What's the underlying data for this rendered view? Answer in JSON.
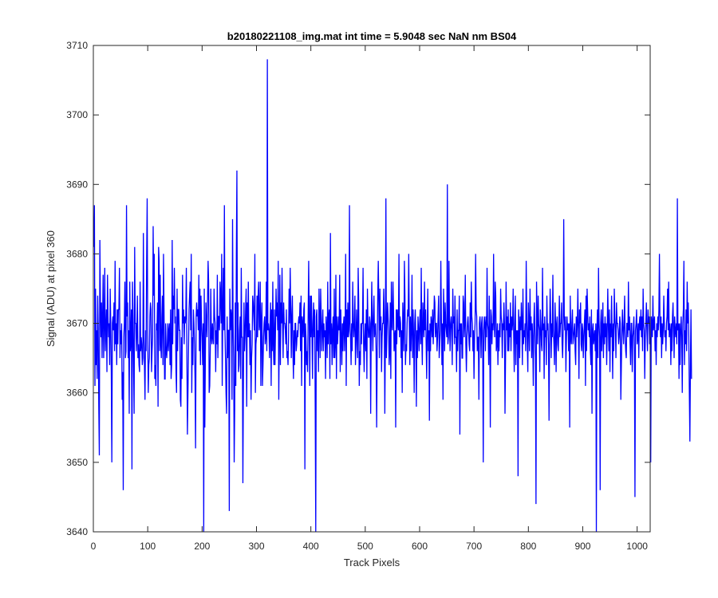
{
  "chart_data": {
    "type": "line",
    "title": "b20180221108_img.mat int time = 5.9048 sec  NaN nm BS04",
    "xlabel": "Track Pixels",
    "ylabel": "Signal (ADU) at pixel 360",
    "xlim": [
      0,
      1024
    ],
    "ylim": [
      3640,
      3710
    ],
    "xticks": [
      0,
      100,
      200,
      300,
      400,
      500,
      600,
      700,
      800,
      900,
      1000
    ],
    "xtick_labels": [
      "0",
      "100",
      "200",
      "300",
      "400",
      "500",
      "600",
      "700",
      "800",
      "900",
      "1000"
    ],
    "yticks": [
      3640,
      3650,
      3660,
      3670,
      3680,
      3690,
      3700,
      3710
    ],
    "ytick_labels": [
      "3640",
      "3650",
      "3660",
      "3670",
      "3680",
      "3690",
      "3700",
      "3710"
    ],
    "grid": false,
    "legend": "none",
    "series_color": "#0000ff",
    "series": [
      {
        "x_start": 1,
        "x_step": 1,
        "values": [
          3681,
          3687,
          3661,
          3675,
          3664,
          3669,
          3662,
          3674,
          3669,
          3658,
          3651,
          3682,
          3673,
          3668,
          3673,
          3665,
          3671,
          3677,
          3665,
          3670,
          3678,
          3666,
          3669,
          3672,
          3663,
          3677,
          3671,
          3668,
          3670,
          3664,
          3675,
          3670,
          3663,
          3650,
          3670,
          3671,
          3669,
          3673,
          3666,
          3679,
          3667,
          3670,
          3664,
          3672,
          3667,
          3672,
          3672,
          3678,
          3665,
          3669,
          3667,
          3670,
          3659,
          3663,
          3646,
          3668,
          3670,
          3676,
          3665,
          3666,
          3687,
          3671,
          3673,
          3665,
          3669,
          3657,
          3676,
          3666,
          3668,
          3672,
          3649,
          3676,
          3671,
          3664,
          3657,
          3681,
          3670,
          3670,
          3666,
          3669,
          3674,
          3665,
          3667,
          3664,
          3663,
          3676,
          3666,
          3668,
          3667,
          3664,
          3665,
          3683,
          3668,
          3664,
          3659,
          3669,
          3666,
          3679,
          3688,
          3669,
          3660,
          3664,
          3665,
          3671,
          3673,
          3672,
          3663,
          3666,
          3668,
          3684,
          3674,
          3680,
          3662,
          3664,
          3661,
          3670,
          3669,
          3673,
          3658,
          3681,
          3679,
          3666,
          3677,
          3667,
          3665,
          3671,
          3674,
          3664,
          3680,
          3672,
          3662,
          3662,
          3670,
          3666,
          3665,
          3667,
          3670,
          3666,
          3669,
          3670,
          3664,
          3672,
          3662,
          3664,
          3682,
          3667,
          3674,
          3672,
          3678,
          3670,
          3671,
          3663,
          3660,
          3675,
          3666,
          3672,
          3672,
          3669,
          3669,
          3659,
          3658,
          3668,
          3662,
          3677,
          3670,
          3672,
          3667,
          3671,
          3670,
          3671,
          3678,
          3666,
          3654,
          3660,
          3666,
          3672,
          3674,
          3676,
          3669,
          3680,
          3660,
          3668,
          3664,
          3672,
          3670,
          3667,
          3662,
          3652,
          3671,
          3673,
          3671,
          3672,
          3669,
          3677,
          3666,
          3675,
          3664,
          3674,
          3670,
          3668,
          3664,
          3670,
          3640,
          3675,
          3655,
          3665,
          3673,
          3670,
          3668,
          3673,
          3679,
          3676,
          3660,
          3661,
          3666,
          3675,
          3668,
          3667,
          3670,
          3668,
          3667,
          3675,
          3671,
          3670,
          3663,
          3669,
          3667,
          3677,
          3665,
          3671,
          3671,
          3669,
          3676,
          3674,
          3670,
          3680,
          3661,
          3672,
          3678,
          3669,
          3687,
          3669,
          3665,
          3660,
          3657,
          3671,
          3665,
          3669,
          3669,
          3643,
          3675,
          3669,
          3672,
          3671,
          3659,
          3685,
          3670,
          3665,
          3650,
          3658,
          3673,
          3661,
          3680,
          3692,
          3666,
          3673,
          3663,
          3664,
          3669,
          3671,
          3662,
          3678,
          3668,
          3668,
          3647,
          3662,
          3673,
          3666,
          3668,
          3672,
          3675,
          3658,
          3673,
          3668,
          3676,
          3668,
          3670,
          3664,
          3669,
          3659,
          3665,
          3667,
          3674,
          3673,
          3671,
          3669,
          3680,
          3660,
          3667,
          3668,
          3674,
          3668,
          3674,
          3676,
          3669,
          3670,
          3676,
          3661,
          3670,
          3673,
          3661,
          3664,
          3668,
          3670,
          3671,
          3667,
          3668,
          3676,
          3666,
          3708,
          3669,
          3670,
          3669,
          3665,
          3670,
          3673,
          3661,
          3672,
          3666,
          3676,
          3667,
          3664,
          3672,
          3664,
          3669,
          3675,
          3671,
          3673,
          3669,
          3679,
          3659,
          3669,
          3677,
          3664,
          3673,
          3670,
          3678,
          3670,
          3665,
          3673,
          3670,
          3670,
          3669,
          3667,
          3672,
          3665,
          3666,
          3664,
          3668,
          3675,
          3670,
          3678,
          3672,
          3665,
          3671,
          3674,
          3666,
          3662,
          3669,
          3664,
          3670,
          3670,
          3666,
          3667,
          3669,
          3668,
          3670,
          3671,
          3670,
          3673,
          3666,
          3674,
          3661,
          3671,
          3670,
          3668,
          3672,
          3673,
          3649,
          3670,
          3668,
          3664,
          3666,
          3663,
          3671,
          3679,
          3670,
          3661,
          3674,
          3668,
          3674,
          3669,
          3662,
          3670,
          3673,
          3668,
          3672,
          3658,
          3640,
          3671,
          3672,
          3666,
          3669,
          3663,
          3675,
          3670,
          3665,
          3675,
          3671,
          3666,
          3669,
          3672,
          3666,
          3670,
          3668,
          3669,
          3662,
          3671,
          3669,
          3665,
          3676,
          3667,
          3671,
          3672,
          3662,
          3683,
          3667,
          3670,
          3664,
          3669,
          3671,
          3665,
          3675,
          3665,
          3667,
          3677,
          3662,
          3671,
          3667,
          3669,
          3671,
          3669,
          3677,
          3663,
          3672,
          3668,
          3664,
          3670,
          3666,
          3670,
          3671,
          3666,
          3669,
          3680,
          3661,
          3672,
          3668,
          3673,
          3668,
          3669,
          3687,
          3670,
          3668,
          3664,
          3670,
          3666,
          3676,
          3670,
          3668,
          3670,
          3674,
          3664,
          3667,
          3672,
          3668,
          3665,
          3678,
          3673,
          3661,
          3666,
          3664,
          3670,
          3667,
          3670,
          3670,
          3678,
          3667,
          3663,
          3668,
          3670,
          3666,
          3672,
          3662,
          3675,
          3670,
          3668,
          3668,
          3671,
          3670,
          3657,
          3669,
          3676,
          3670,
          3666,
          3671,
          3674,
          3668,
          3669,
          3670,
          3666,
          3655,
          3666,
          3674,
          3679,
          3673,
          3665,
          3675,
          3669,
          3671,
          3663,
          3668,
          3670,
          3670,
          3675,
          3671,
          3657,
          3667,
          3688,
          3665,
          3669,
          3673,
          3671,
          3669,
          3664,
          3666,
          3673,
          3662,
          3676,
          3670,
          3669,
          3676,
          3672,
          3666,
          3668,
          3669,
          3655,
          3672,
          3667,
          3672,
          3670,
          3669,
          3680,
          3668,
          3671,
          3670,
          3665,
          3669,
          3660,
          3673,
          3670,
          3666,
          3679,
          3674,
          3664,
          3667,
          3666,
          3670,
          3672,
          3671,
          3680,
          3670,
          3664,
          3671,
          3666,
          3669,
          3677,
          3665,
          3672,
          3668,
          3660,
          3670,
          3672,
          3668,
          3658,
          3669,
          3665,
          3671,
          3669,
          3666,
          3670,
          3672,
          3667,
          3678,
          3668,
          3664,
          3673,
          3670,
          3668,
          3676,
          3669,
          3672,
          3667,
          3662,
          3669,
          3675,
          3666,
          3669,
          3656,
          3670,
          3666,
          3671,
          3670,
          3668,
          3672,
          3667,
          3670,
          3674,
          3673,
          3668,
          3670,
          3670,
          3666,
          3668,
          3671,
          3674,
          3665,
          3667,
          3669,
          3679,
          3671,
          3664,
          3670,
          3659,
          3675,
          3671,
          3666,
          3673,
          3670,
          3669,
          3668,
          3690,
          3667,
          3668,
          3679,
          3670,
          3666,
          3670,
          3671,
          3669,
          3664,
          3675,
          3670,
          3671,
          3667,
          3674,
          3668,
          3668,
          3663,
          3672,
          3666,
          3669,
          3669,
          3674,
          3654,
          3670,
          3667,
          3670,
          3665,
          3665,
          3674,
          3673,
          3668,
          3670,
          3677,
          3667,
          3663,
          3668,
          3670,
          3671,
          3669,
          3667,
          3666,
          3673,
          3668,
          3676,
          3671,
          3670,
          3666,
          3669,
          3662,
          3668,
          3670,
          3680,
          3672,
          3671,
          3666,
          3668,
          3668,
          3659,
          3670,
          3671,
          3669,
          3665,
          3670,
          3671,
          3667,
          3650,
          3669,
          3671,
          3670,
          3666,
          3671,
          3668,
          3678,
          3670,
          3669,
          3664,
          3674,
          3668,
          3655,
          3672,
          3671,
          3667,
          3670,
          3669,
          3680,
          3670,
          3668,
          3676,
          3674,
          3666,
          3667,
          3670,
          3664,
          3669,
          3666,
          3670,
          3668,
          3675,
          3671,
          3670,
          3665,
          3670,
          3669,
          3673,
          3670,
          3657,
          3665,
          3676,
          3669,
          3671,
          3666,
          3672,
          3666,
          3670,
          3668,
          3673,
          3666,
          3671,
          3669,
          3670,
          3675,
          3668,
          3663,
          3670,
          3674,
          3664,
          3669,
          3667,
          3669,
          3648,
          3672,
          3670,
          3665,
          3671,
          3669,
          3673,
          3670,
          3664,
          3675,
          3667,
          3669,
          3668,
          3670,
          3666,
          3679,
          3671,
          3667,
          3663,
          3673,
          3670,
          3666,
          3675,
          3669,
          3671,
          3665,
          3670,
          3668,
          3661,
          3670,
          3673,
          3669,
          3665,
          3644,
          3676,
          3671,
          3667,
          3674,
          3670,
          3669,
          3663,
          3672,
          3670,
          3667,
          3666,
          3678,
          3669,
          3670,
          3662,
          3671,
          3668,
          3669,
          3664,
          3674,
          3669,
          3670,
          3667,
          3656,
          3668,
          3675,
          3671,
          3665,
          3670,
          3668,
          3677,
          3669,
          3667,
          3664,
          3673,
          3670,
          3663,
          3670,
          3671,
          3667,
          3666,
          3669,
          3674,
          3668,
          3670,
          3670,
          3673,
          3667,
          3665,
          3669,
          3685,
          3671,
          3669,
          3671,
          3663,
          3668,
          3671,
          3669,
          3670,
          3666,
          3670,
          3655,
          3674,
          3668,
          3667,
          3670,
          3672,
          3667,
          3668,
          3669,
          3670,
          3666,
          3664,
          3671,
          3668,
          3670,
          3675,
          3669,
          3662,
          3672,
          3670,
          3673,
          3667,
          3666,
          3670,
          3669,
          3665,
          3668,
          3670,
          3672,
          3661,
          3674,
          3666,
          3675,
          3672,
          3669,
          3670,
          3668,
          3671,
          3666,
          3664,
          3672,
          3657,
          3669,
          3670,
          3667,
          3668,
          3669,
          3666,
          3670,
          3640,
          3669,
          3672,
          3665,
          3678,
          3670,
          3668,
          3646,
          3670,
          3672,
          3666,
          3669,
          3673,
          3665,
          3670,
          3667,
          3671,
          3668,
          3670,
          3664,
          3669,
          3675,
          3670,
          3666,
          3672,
          3663,
          3670,
          3668,
          3674,
          3669,
          3662,
          3670,
          3666,
          3675,
          3671,
          3669,
          3665,
          3673,
          3670,
          3670,
          3669,
          3667,
          3668,
          3671,
          3670,
          3659,
          3664,
          3669,
          3672,
          3669,
          3667,
          3670,
          3674,
          3668,
          3666,
          3665,
          3670,
          3670,
          3668,
          3676,
          3669,
          3671,
          3667,
          3664,
          3670,
          3670,
          3663,
          3668,
          3669,
          3671,
          3666,
          3645,
          3669,
          3670,
          3672,
          3667,
          3668,
          3670,
          3665,
          3670,
          3671,
          3669,
          3672,
          3668,
          3671,
          3666,
          3675,
          3670,
          3669,
          3662,
          3668,
          3670,
          3673,
          3669,
          3666,
          3672,
          3670,
          3671,
          3667,
          3668,
          3650,
          3671,
          3670,
          3668,
          3674,
          3669,
          3670,
          3671,
          3666,
          3669,
          3664,
          3670,
          3668,
          3671,
          3669,
          3672,
          3680,
          3670,
          3668,
          3671,
          3665,
          3670,
          3667,
          3669,
          3674,
          3670,
          3668,
          3669,
          3666,
          3670,
          3671,
          3675,
          3669,
          3676,
          3668,
          3670,
          3669,
          3664,
          3670,
          3666,
          3671,
          3673,
          3669,
          3665,
          3671,
          3669,
          3668,
          3670,
          3667,
          3688,
          3669,
          3670,
          3662,
          3670,
          3664,
          3669,
          3671,
          3668,
          3660,
          3670,
          3672,
          3679,
          3664,
          3669,
          3667,
          3672,
          3666,
          3676,
          3670,
          3673,
          3668,
          3660,
          3653,
          3664,
          3672,
          3662
        ]
      }
    ]
  }
}
